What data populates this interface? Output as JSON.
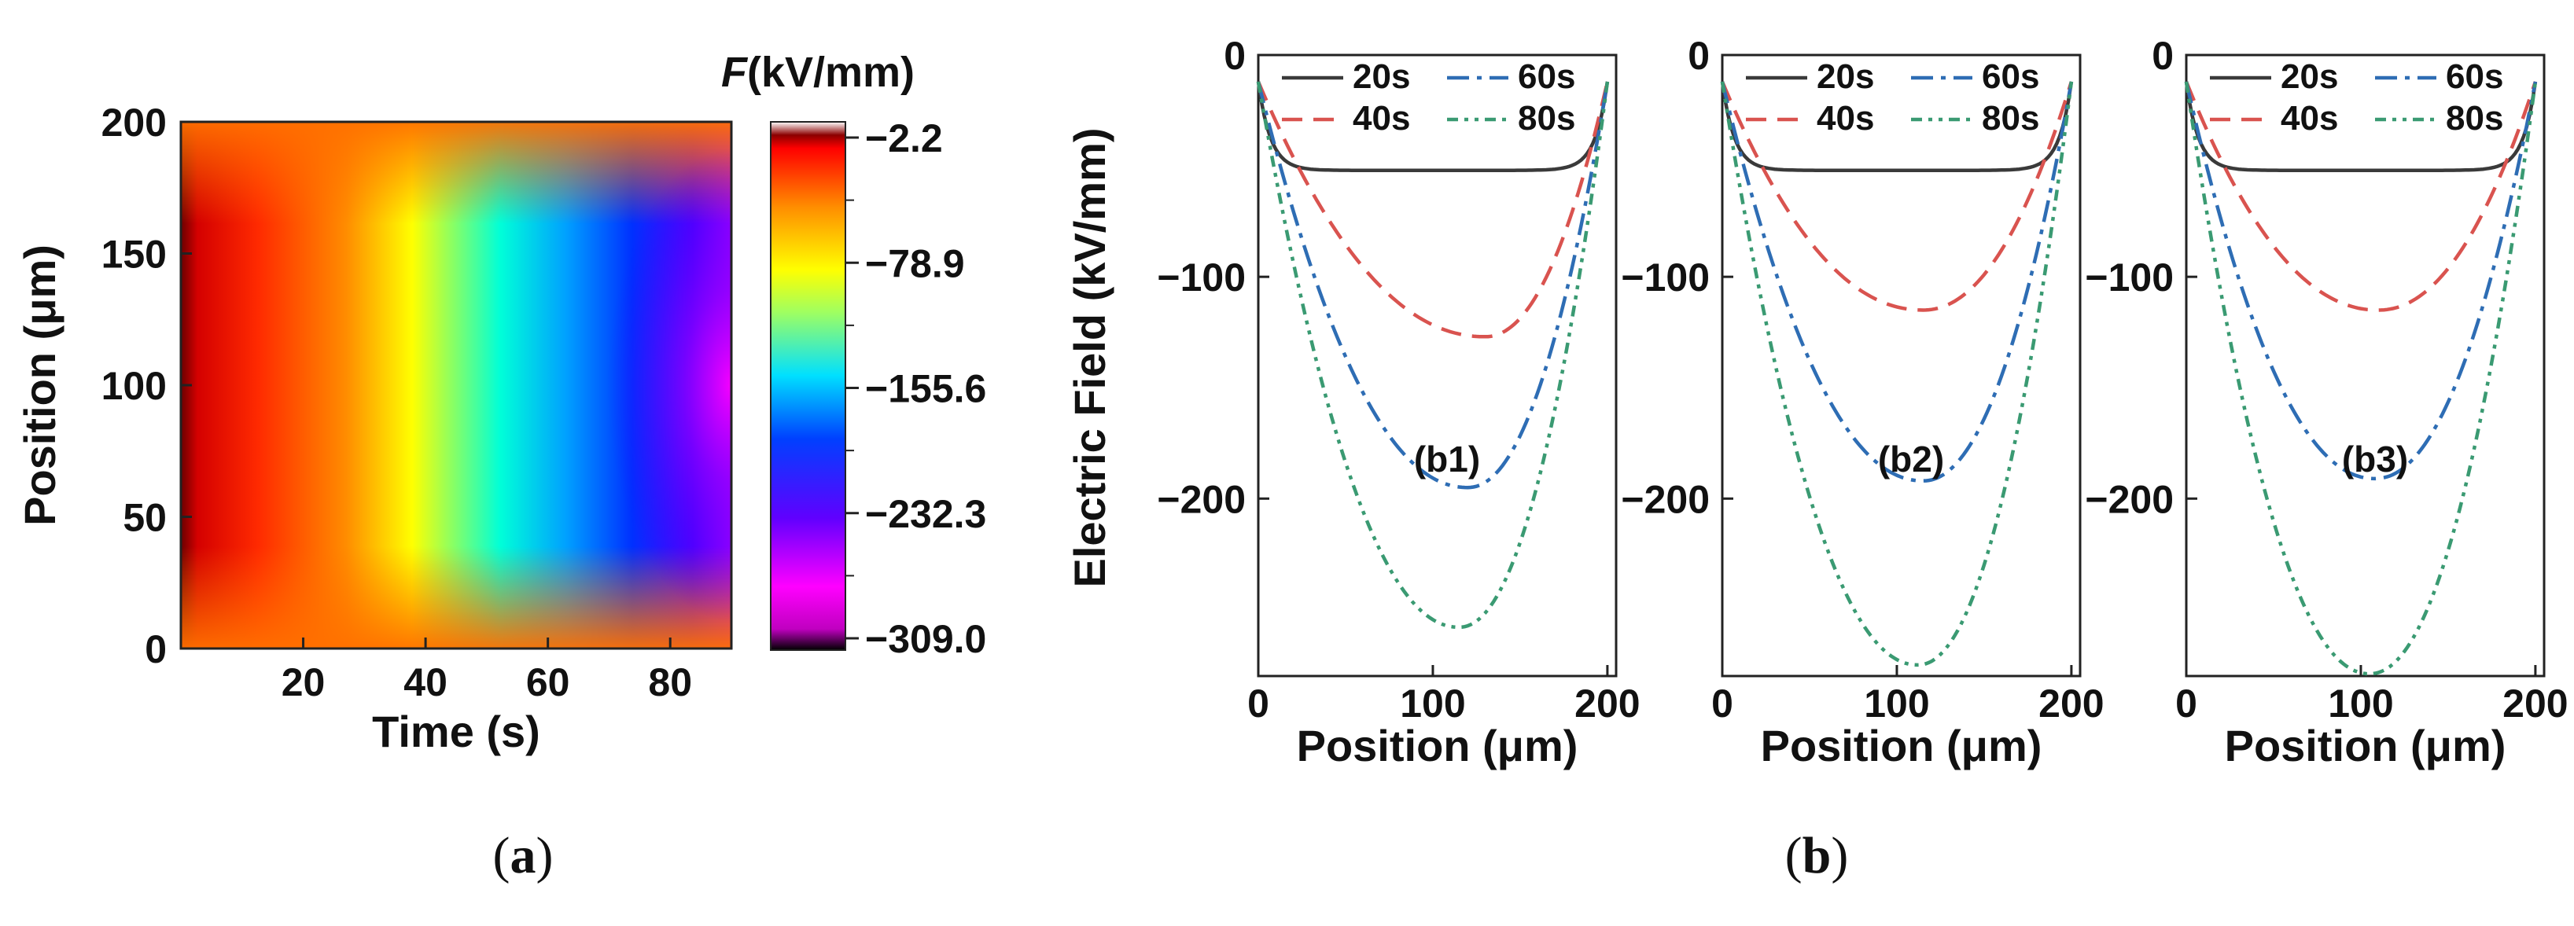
{
  "chart_data": [
    {
      "type": "heatmap",
      "panel": "(a)",
      "xlabel": "Time (s)",
      "ylabel": "Position (μm)",
      "colorbar_title_symbol": "F",
      "colorbar_title_unit": "(kV/mm)",
      "xlim": [
        0,
        90
      ],
      "ylim": [
        0,
        200
      ],
      "x_ticks": [
        "20",
        "40",
        "60",
        "80"
      ],
      "y_ticks": [
        "0",
        "50",
        "100",
        "150",
        "200"
      ],
      "colorbar_range": [
        -309.0,
        -2.2
      ],
      "colorbar_ticks": [
        "−2.2",
        "−78.9",
        "−155.6",
        "−232.3",
        "−309.0"
      ],
      "colormap": [
        "#6b0000",
        "#ff1a00",
        "#ffb000",
        "#ffff00",
        "#00ffff",
        "#0040ff",
        "#7000ff",
        "#ff00ff"
      ]
    },
    {
      "type": "line",
      "panel": "(b1)",
      "xlabel": "Position (μm)",
      "ylabel": "Electric Field (kV/mm)",
      "xlim": [
        0,
        205
      ],
      "ylim": [
        -280,
        0
      ],
      "x_ticks": [
        "0",
        "100",
        "200"
      ],
      "y_ticks": [
        "0",
        "−100",
        "−200"
      ],
      "legend_position": "top",
      "series": [
        {
          "name": "20s",
          "color": "#3a3a3a",
          "min": -52,
          "min_at": 100
        },
        {
          "name": "40s",
          "color": "#d9534f",
          "min": -127,
          "min_at": 130
        },
        {
          "name": "60s",
          "color": "#2e6db4",
          "min": -195,
          "min_at": 120
        },
        {
          "name": "80s",
          "color": "#3a9a72",
          "min": -258,
          "min_at": 115
        }
      ]
    },
    {
      "type": "line",
      "panel": "(b2)",
      "xlabel": "Position (μm)",
      "ylabel": "",
      "xlim": [
        0,
        205
      ],
      "ylim": [
        -280,
        0
      ],
      "x_ticks": [
        "0",
        "100",
        "200"
      ],
      "y_ticks": [
        "0",
        "−100",
        "−200"
      ],
      "legend_position": "top",
      "series": [
        {
          "name": "20s",
          "color": "#3a3a3a",
          "min": -52,
          "min_at": 100
        },
        {
          "name": "40s",
          "color": "#d9534f",
          "min": -115,
          "min_at": 115
        },
        {
          "name": "60s",
          "color": "#2e6db4",
          "min": -192,
          "min_at": 115
        },
        {
          "name": "80s",
          "color": "#3a9a72",
          "min": -275,
          "min_at": 112
        }
      ]
    },
    {
      "type": "line",
      "panel": "(b3)",
      "xlabel": "Position (μm)",
      "ylabel": "",
      "xlim": [
        0,
        205
      ],
      "ylim": [
        -280,
        0
      ],
      "x_ticks": [
        "0",
        "100",
        "200"
      ],
      "y_ticks": [
        "0",
        "−100",
        "−200"
      ],
      "legend_position": "top",
      "series": [
        {
          "name": "20s",
          "color": "#3a3a3a",
          "min": -52,
          "min_at": 100
        },
        {
          "name": "40s",
          "color": "#d9534f",
          "min": -115,
          "min_at": 110
        },
        {
          "name": "60s",
          "color": "#2e6db4",
          "min": -191,
          "min_at": 108
        },
        {
          "name": "80s",
          "color": "#3a9a72",
          "min": -279,
          "min_at": 105
        }
      ]
    }
  ],
  "captions": {
    "a_open": "(",
    "a_letter": "a",
    "a_close": ")",
    "b_open": "(",
    "b_letter": "b",
    "b_close": ")"
  }
}
